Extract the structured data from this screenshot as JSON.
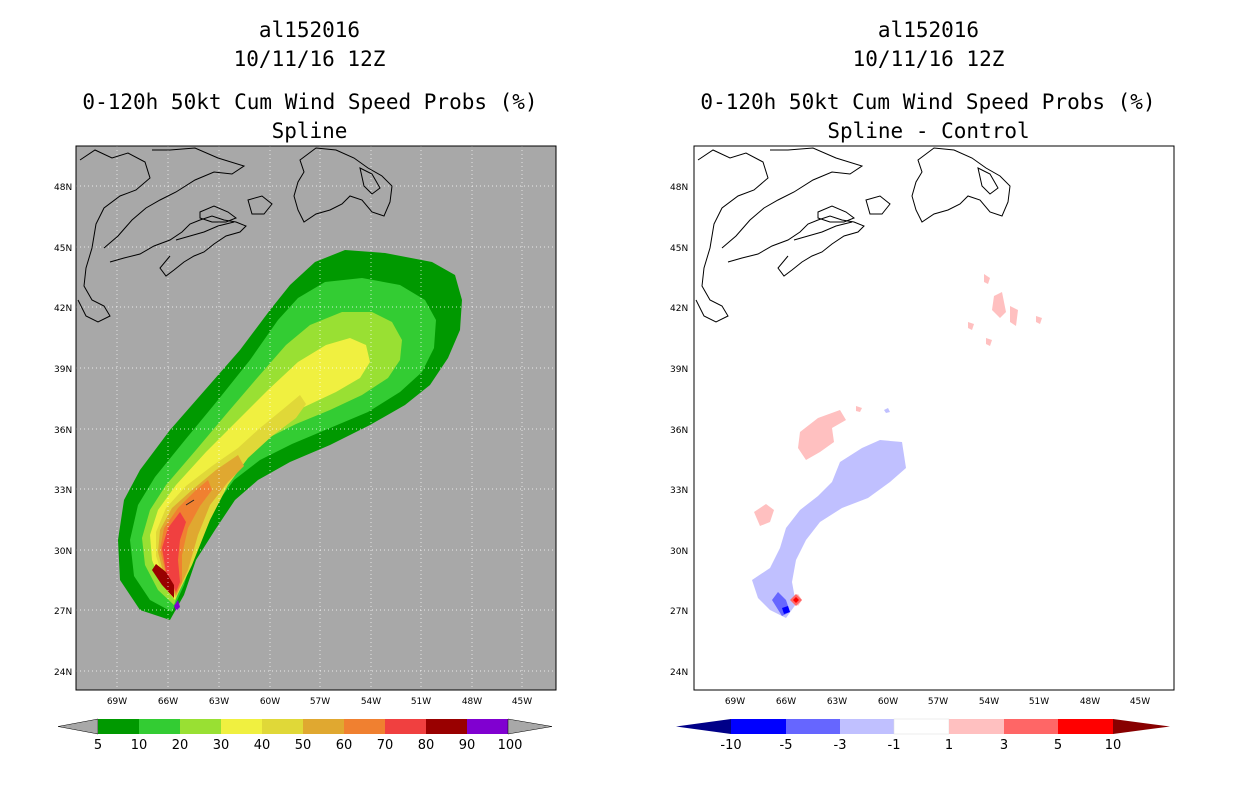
{
  "left_panel": {
    "storm_id": "al152016",
    "date": "10/11/16 12Z",
    "product": "0-120h 50kt Cum Wind Speed Probs (%)",
    "subtitle": "Spline",
    "background_color": "#a8a8a8",
    "colorbar": {
      "labels": [
        "5",
        "10",
        "20",
        "30",
        "40",
        "50",
        "60",
        "70",
        "80",
        "90",
        "100"
      ],
      "colors": [
        "#009900",
        "#33cc33",
        "#99e033",
        "#f0f040",
        "#e0d838",
        "#e0a830",
        "#f08030",
        "#f04040",
        "#990000",
        "#8000d0"
      ],
      "under_color": "#a8a8a8",
      "over_color": "#a8a8a8"
    }
  },
  "right_panel": {
    "storm_id": "al152016",
    "date": "10/11/16 12Z",
    "product": "0-120h 50kt Cum Wind Speed Probs (%)",
    "subtitle": "Spline - Control",
    "background_color": "#ffffff",
    "colorbar": {
      "labels": [
        "-10",
        "-5",
        "-3",
        "-1",
        "1",
        "3",
        "5",
        "10"
      ],
      "colors": [
        "#0000ff",
        "#6666ff",
        "#c0c0ff",
        "#ffffff",
        "#ffc0c0",
        "#ff6666",
        "#ff0000"
      ],
      "under_color": "#000088",
      "over_color": "#880000"
    }
  },
  "axes": {
    "lat_labels": [
      "48N",
      "45N",
      "42N",
      "39N",
      "36N",
      "33N",
      "30N",
      "27N",
      "24N"
    ],
    "lon_labels": [
      "69W",
      "66W",
      "63W",
      "60W",
      "57W",
      "54W",
      "51W",
      "48W",
      "45W"
    ]
  }
}
